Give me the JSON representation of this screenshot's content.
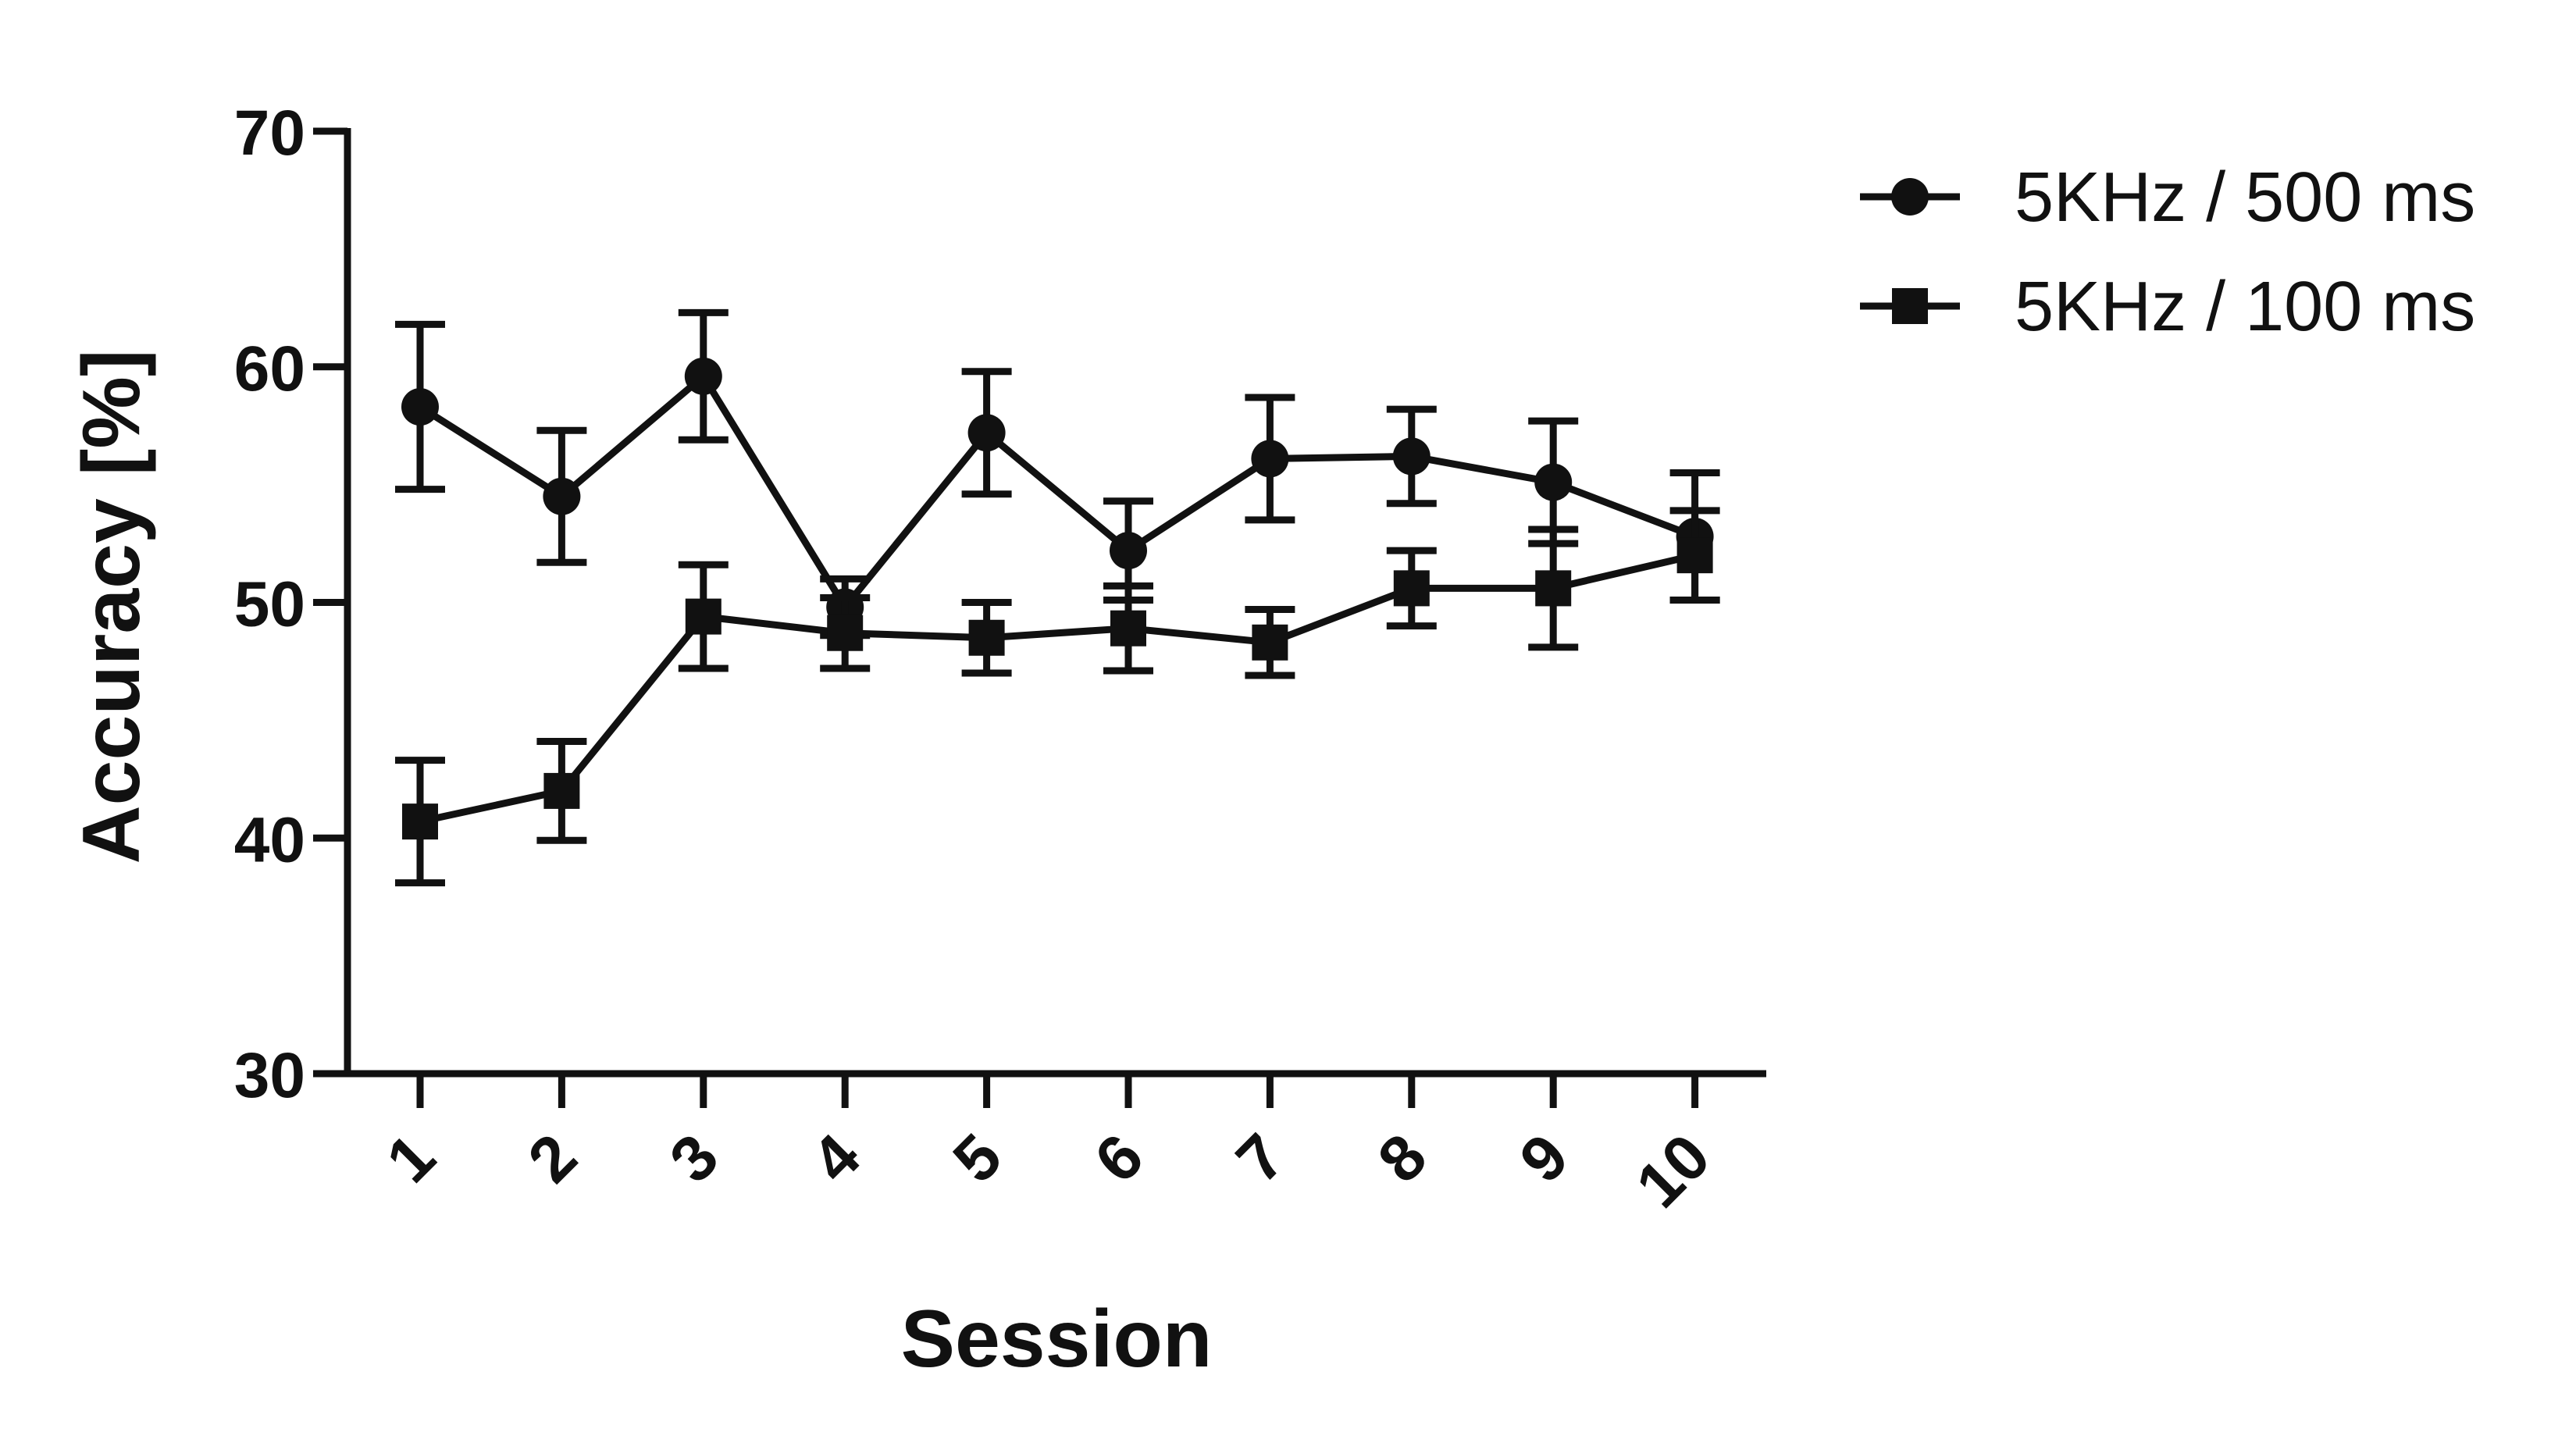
{
  "chart_data": {
    "type": "line",
    "title": "",
    "xlabel": "Session",
    "ylabel": "Accuracy [%]",
    "ylim": [
      30,
      70
    ],
    "yticks": [
      30,
      40,
      50,
      60,
      70
    ],
    "categories": [
      "1",
      "2",
      "3",
      "4",
      "5",
      "6",
      "7",
      "8",
      "9",
      "10"
    ],
    "grid": false,
    "legend_position": "top-right",
    "color": "#111111",
    "series": [
      {
        "name": "5KHz / 500 ms",
        "marker": "circle",
        "values": [
          58.3,
          54.5,
          59.6,
          49.8,
          57.2,
          52.2,
          56.1,
          56.2,
          55.1,
          52.8
        ],
        "error": [
          3.5,
          2.8,
          2.7,
          1.2,
          2.6,
          2.1,
          2.6,
          2.0,
          2.6,
          2.7
        ]
      },
      {
        "name": "5KHz / 100 ms",
        "marker": "square",
        "values": [
          40.7,
          42.0,
          49.4,
          48.7,
          48.5,
          48.9,
          48.3,
          50.6,
          50.6,
          52.0
        ],
        "error": [
          2.6,
          2.1,
          2.2,
          1.5,
          1.5,
          1.8,
          1.4,
          1.6,
          2.5,
          1.9
        ]
      }
    ]
  }
}
